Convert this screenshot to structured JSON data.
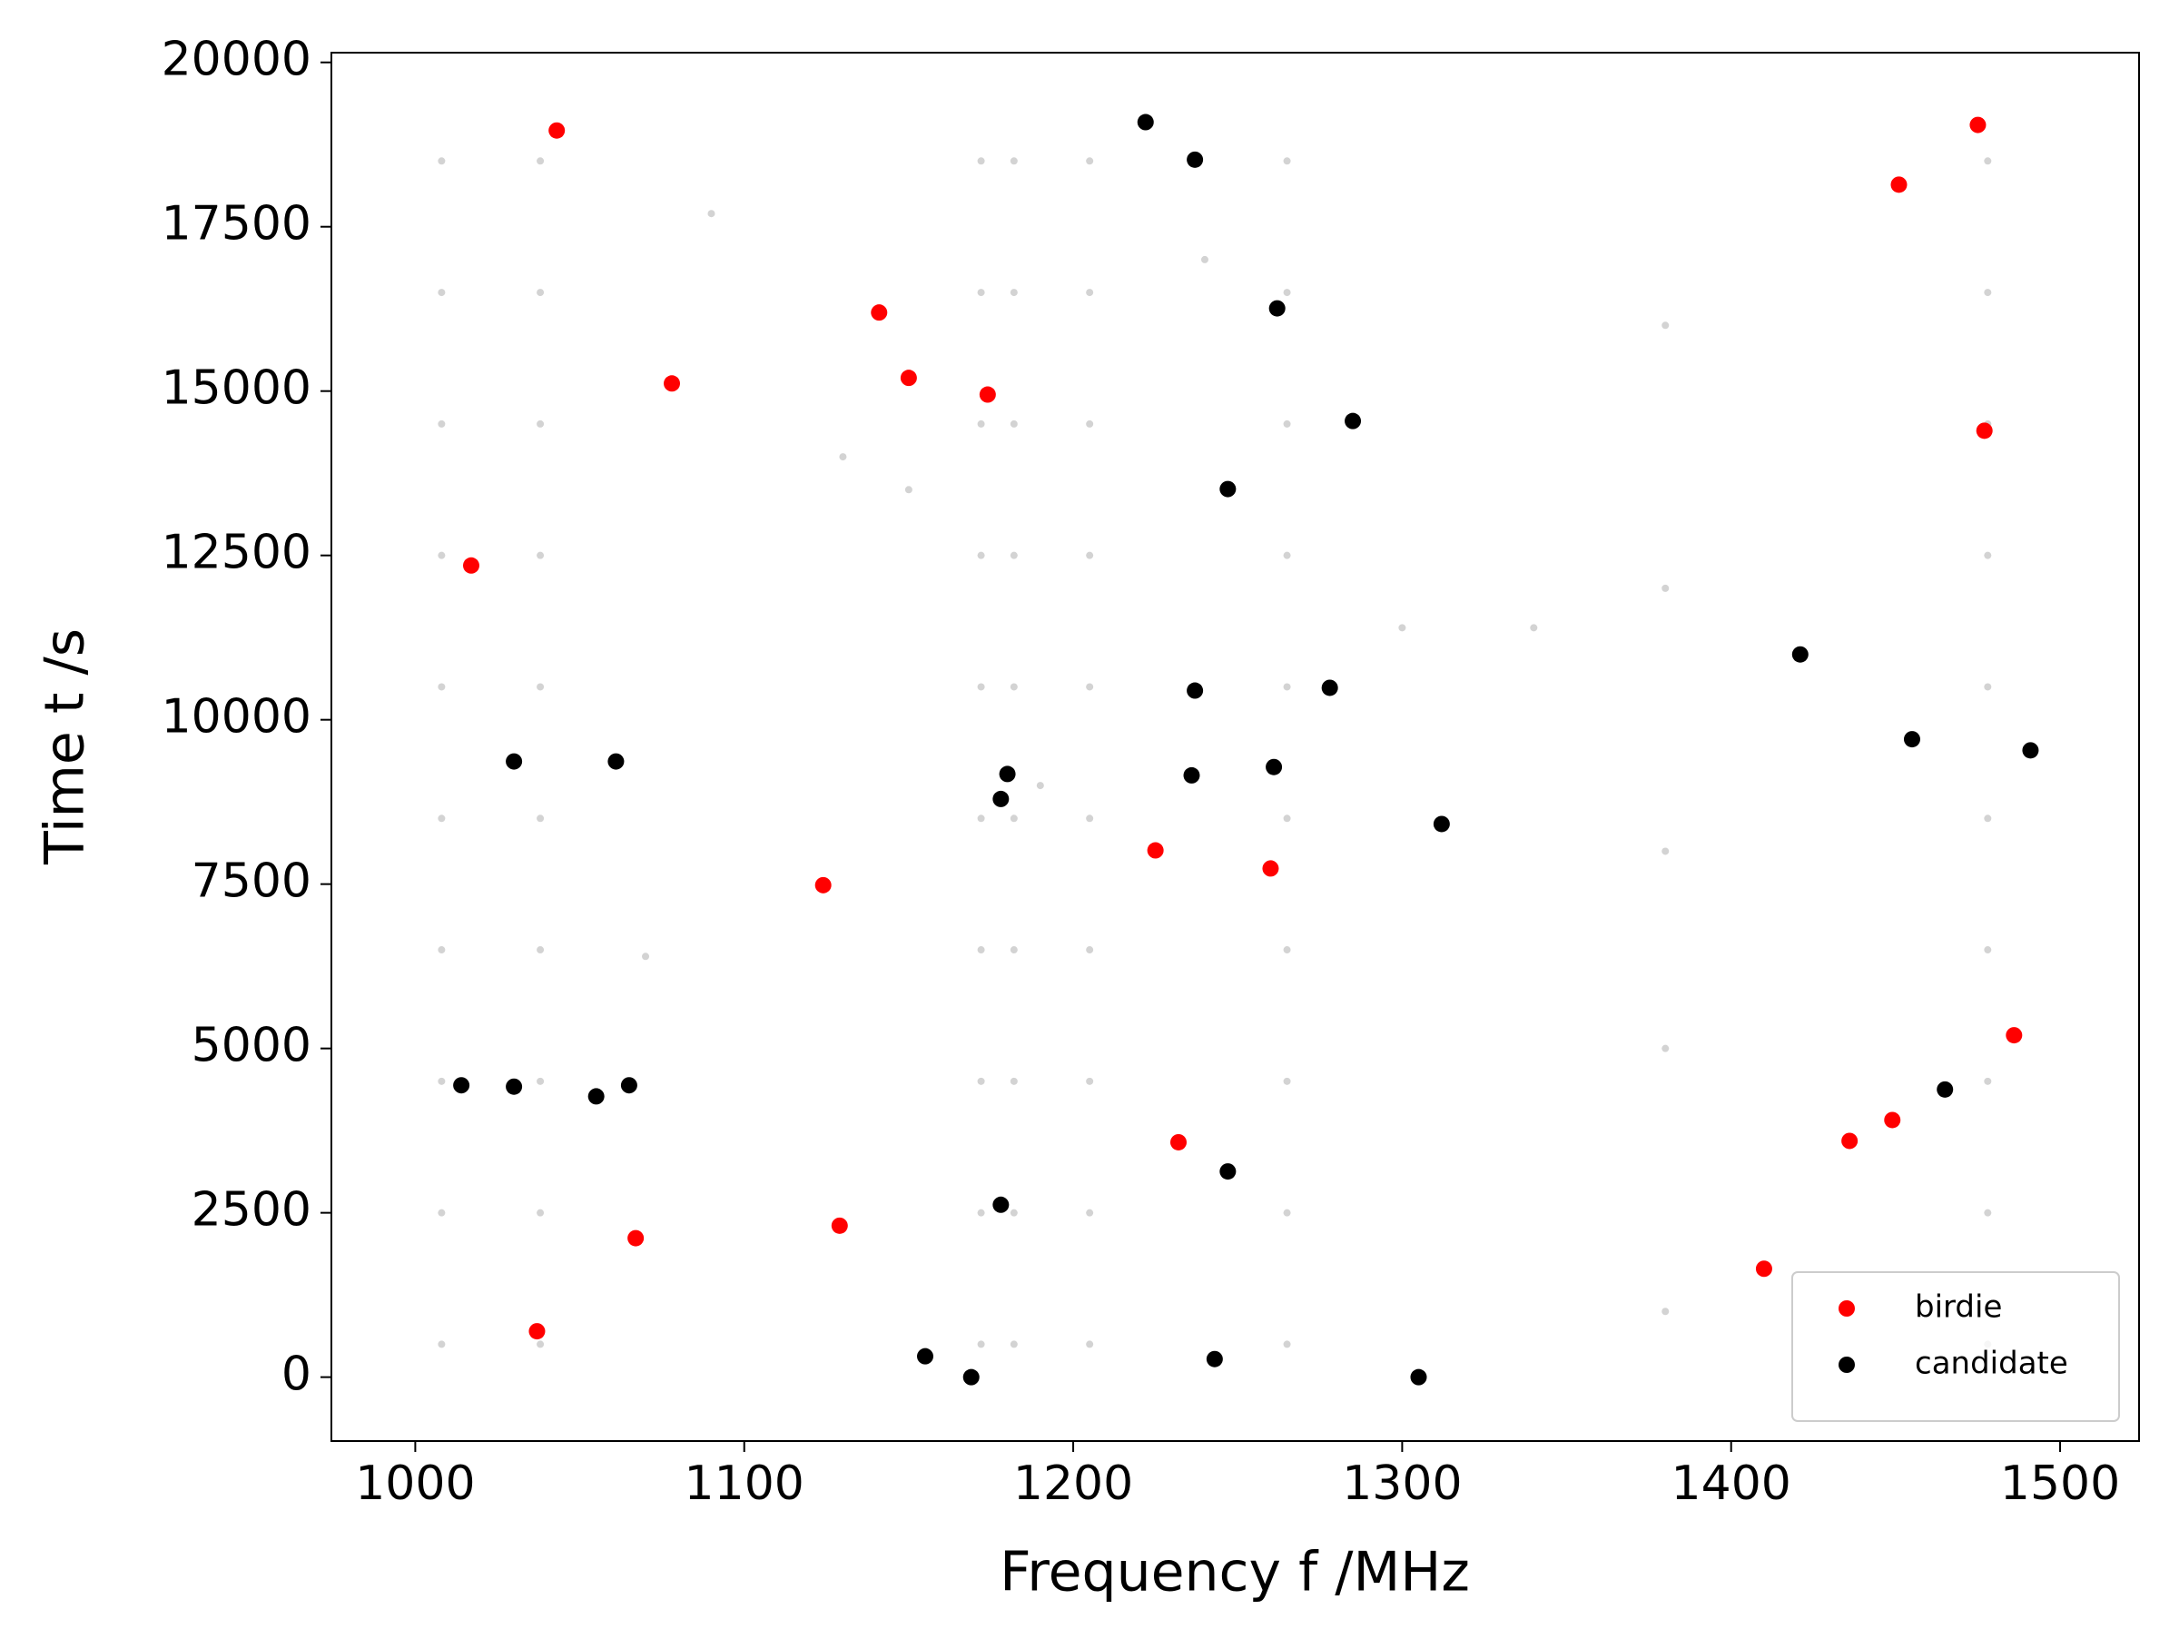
{
  "chart_data": {
    "type": "scatter",
    "xlabel": "Frequency f /MHz",
    "ylabel": "Time t /s",
    "xlim": [
      974.5,
      1524
    ],
    "ylim": [
      -972,
      20148
    ],
    "xticks": [
      1000,
      1100,
      1200,
      1300,
      1400,
      1500
    ],
    "yticks": [
      0,
      2500,
      5000,
      7500,
      10000,
      12500,
      15000,
      17500,
      20000
    ],
    "legend": "lower right",
    "series": [
      {
        "color": "#d3d3d3",
        "x": [
          1008,
          1008,
          1008,
          1008,
          1008,
          1008,
          1008,
          1008,
          1008,
          1008,
          1038,
          1038,
          1038,
          1038,
          1038,
          1038,
          1038,
          1038,
          1038,
          1038,
          1172,
          1172,
          1172,
          1172,
          1172,
          1172,
          1172,
          1172,
          1172,
          1172,
          1182,
          1182,
          1182,
          1182,
          1182,
          1182,
          1182,
          1182,
          1182,
          1182,
          1205,
          1205,
          1205,
          1205,
          1205,
          1205,
          1205,
          1205,
          1205,
          1205,
          1265,
          1265,
          1265,
          1265,
          1265,
          1265,
          1265,
          1265,
          1265,
          1265,
          1478,
          1478,
          1478,
          1478,
          1478,
          1478,
          1478,
          1478,
          1478,
          1478,
          1380,
          1380,
          1380,
          1380,
          1380,
          1130,
          1150,
          1240,
          1340,
          1070,
          1190,
          1300,
          1090
        ],
        "values": [
          500,
          2500,
          4500,
          6500,
          8500,
          10500,
          12500,
          14500,
          16500,
          18500,
          500,
          2500,
          4500,
          6500,
          8500,
          10500,
          12500,
          14500,
          16500,
          18500,
          500,
          2500,
          4500,
          6500,
          8500,
          10500,
          12500,
          14500,
          16500,
          18500,
          500,
          2500,
          4500,
          6500,
          8500,
          10500,
          12500,
          14500,
          16500,
          18500,
          500,
          2500,
          4500,
          6500,
          8500,
          10500,
          12500,
          14500,
          16500,
          18500,
          500,
          2500,
          4500,
          6500,
          8500,
          10500,
          12500,
          14500,
          16500,
          18500,
          500,
          2500,
          4500,
          6500,
          8500,
          10500,
          12500,
          14500,
          16500,
          18500,
          1000,
          5000,
          8000,
          12000,
          16000,
          14000,
          13500,
          17000,
          11400,
          6400,
          9000,
          11400,
          17700
        ]
      },
      {
        "name": "birdie",
        "color": "#ff0000",
        "x": [
          1043,
          1017,
          1078,
          1141,
          1150,
          1174,
          1124,
          1129,
          1067,
          1037,
          1225,
          1260,
          1232,
          1410,
          1436,
          1449,
          1451,
          1486,
          1475,
          1477
        ],
        "values": [
          18964,
          12347,
          15116,
          16195,
          15201,
          14947,
          7484,
          2304,
          2114,
          698,
          8013,
          7738,
          3573,
          1649,
          3594,
          3911,
          18140,
          5201,
          19049,
          14397
        ]
      },
      {
        "name": "candidate",
        "color": "#000000",
        "x": [
          1222,
          1237,
          1262,
          1285,
          1247,
          1421,
          1237,
          1278,
          1455,
          1491,
          1030,
          1061,
          1180,
          1236,
          1261,
          1178,
          1312,
          1014,
          1030,
          1055,
          1065,
          1465,
          1247,
          1178,
          1155,
          1169,
          1243,
          1305
        ],
        "values": [
          19091,
          18520,
          16258,
          14545,
          13510,
          10994,
          10444,
          10486,
          9704,
          9535,
          9366,
          9366,
          9175,
          9154,
          9281,
          8795,
          8414,
          4440,
          4419,
          4271,
          4440,
          4376,
          3129,
          2622,
          317,
          0,
          275,
          0
        ]
      }
    ]
  }
}
